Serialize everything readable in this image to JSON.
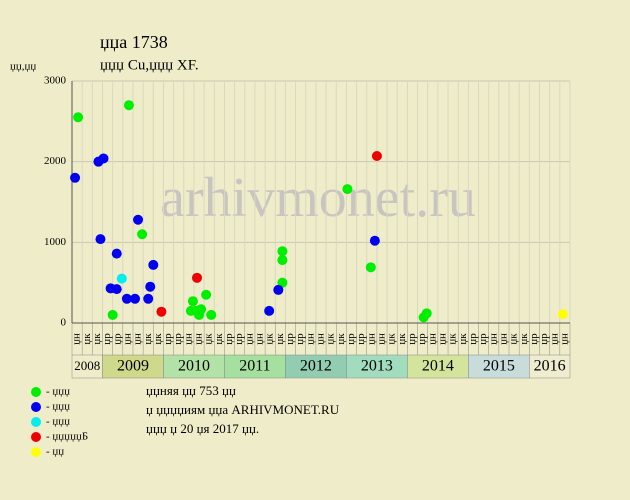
{
  "chart_data": {
    "type": "scatter",
    "title": "џџа 1738",
    "subtitle": "џџџ Cu,џџџ XF.",
    "y_label": "џџ,џџ",
    "watermark": "arhivmonet.ru",
    "ylim": [
      0,
      3000
    ],
    "yticks": [
      0,
      1000,
      2000,
      3000
    ],
    "grid": true,
    "xlim": [
      0,
      49
    ],
    "groups": [
      {
        "name": "2008",
        "color": "#efedc9",
        "categories": [
          "џн",
          "џк",
          "џк"
        ]
      },
      {
        "name": "2009",
        "color": "#cfd98c",
        "categories": [
          "џр",
          "џр",
          "џн",
          "џн",
          "џк",
          "џк"
        ]
      },
      {
        "name": "2010",
        "color": "#b3e2a6",
        "categories": [
          "џр",
          "џр",
          "џн",
          "џн",
          "џк",
          "џк"
        ]
      },
      {
        "name": "2011",
        "color": "#a6e0a0",
        "categories": [
          "џр",
          "џр",
          "џн",
          "џн",
          "џк",
          "џк"
        ]
      },
      {
        "name": "2012",
        "color": "#92cdb2",
        "categories": [
          "џр",
          "џр",
          "џн",
          "џн",
          "џк",
          "џк"
        ]
      },
      {
        "name": "2013",
        "color": "#a2dcbe",
        "categories": [
          "џр",
          "џр",
          "џн",
          "џн",
          "џк",
          "џк"
        ]
      },
      {
        "name": "2014",
        "color": "#d3e49c",
        "categories": [
          "џр",
          "џр",
          "џн",
          "џн",
          "џк",
          "џк"
        ]
      },
      {
        "name": "2015",
        "color": "#c9dcdc",
        "categories": [
          "џр",
          "џр",
          "џн",
          "џн",
          "џк",
          "џк"
        ]
      },
      {
        "name": "2016",
        "color": "#efedcf",
        "categories": [
          "џр",
          "џр",
          "џн",
          "џн"
        ]
      }
    ],
    "series": [
      {
        "name": "- џџџ",
        "color": "#00ee00",
        "x": [
          0.6,
          5.6,
          4.0,
          6.9,
          11.9,
          11.7,
          12.2,
          12.7,
          12.5,
          13.2,
          13.7,
          20.7,
          20.7,
          20.7,
          27.1,
          29.4,
          34.6,
          34.9
        ],
        "values": [
          2550,
          2700,
          100,
          1100,
          270,
          150,
          150,
          170,
          100,
          350,
          100,
          890,
          780,
          500,
          1660,
          690,
          70,
          120
        ]
      },
      {
        "name": "- џџџ",
        "color": "#0000ee",
        "x": [
          0.3,
          2.6,
          3.1,
          2.8,
          3.8,
          4.4,
          4.4,
          5.4,
          6.2,
          6.5,
          7.5,
          7.7,
          8.0,
          19.4,
          20.3,
          29.8
        ],
        "values": [
          1800,
          2000,
          2040,
          1040,
          430,
          420,
          860,
          300,
          300,
          1280,
          300,
          450,
          720,
          150,
          410,
          1020
        ]
      },
      {
        "name": "- џџџ",
        "color": "#00eeee",
        "x": [
          4.9
        ],
        "values": [
          550
        ]
      },
      {
        "name": "- џџџџџБ",
        "color": "#ee0000",
        "x": [
          8.8,
          12.3,
          30.0
        ],
        "values": [
          140,
          560,
          2070
        ]
      },
      {
        "name": "- џџ",
        "color": "#ffff00",
        "x": [
          48.3
        ],
        "values": [
          110
        ]
      }
    ],
    "notes": [
      "џџняя џџ 753 џџ",
      "џ џџџџиям џџа ARHIVMONET.RU",
      "џџџ џ 20 џя 2017 џџ."
    ]
  }
}
